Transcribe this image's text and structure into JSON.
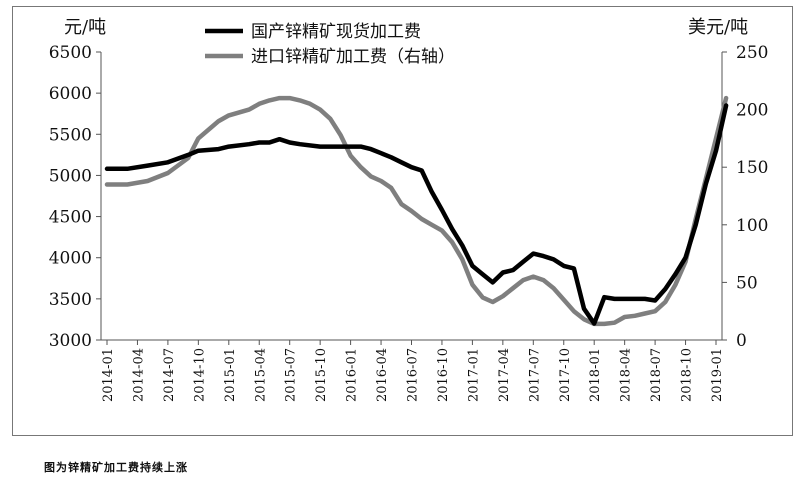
{
  "caption": "图为锌精矿加工费持续上涨",
  "chart_data": {
    "type": "line",
    "left_unit": "元/吨",
    "right_unit": "美元/吨",
    "ylim_left": [
      3000,
      6500
    ],
    "yticks_left": [
      3000,
      3500,
      4000,
      4500,
      5000,
      5500,
      6000,
      6500
    ],
    "ylim_right": [
      0,
      250
    ],
    "yticks_right": [
      0,
      50,
      100,
      150,
      200,
      250
    ],
    "xlim": [
      "2014-01",
      "2019-01"
    ],
    "x_tick_labels": [
      "2014-01",
      "2014-04",
      "2014-07",
      "2014-10",
      "2015-01",
      "2015-04",
      "2015-07",
      "2015-10",
      "2016-01",
      "2016-04",
      "2016-07",
      "2016-10",
      "2017-01",
      "2017-04",
      "2017-07",
      "2017-10",
      "2018-01",
      "2018-04",
      "2018-07",
      "2018-10",
      "2019-01"
    ],
    "legend_position": "top-center",
    "grid": false,
    "series": [
      {
        "name": "国产锌精矿现货加工费",
        "axis": "left",
        "color": "#000000",
        "x": [
          "2014-01",
          "2014-03",
          "2014-05",
          "2014-07",
          "2014-09",
          "2014-10",
          "2014-12",
          "2015-01",
          "2015-03",
          "2015-04",
          "2015-05",
          "2015-06",
          "2015-07",
          "2015-08",
          "2015-10",
          "2015-12",
          "2016-01",
          "2016-02",
          "2016-03",
          "2016-04",
          "2016-05",
          "2016-06",
          "2016-07",
          "2016-08",
          "2016-09",
          "2016-10",
          "2016-11",
          "2016-12",
          "2017-01",
          "2017-02",
          "2017-03",
          "2017-04",
          "2017-05",
          "2017-06",
          "2017-07",
          "2017-08",
          "2017-09",
          "2017-10",
          "2017-11",
          "2017-12",
          "2018-01",
          "2018-02",
          "2018-03",
          "2018-04",
          "2018-05",
          "2018-06",
          "2018-07",
          "2018-08",
          "2018-09",
          "2018-10",
          "2018-11",
          "2018-12",
          "2019-01",
          "2019-02"
        ],
        "values": [
          5080,
          5080,
          5120,
          5160,
          5250,
          5300,
          5320,
          5350,
          5380,
          5400,
          5400,
          5440,
          5400,
          5380,
          5350,
          5350,
          5350,
          5350,
          5320,
          5270,
          5220,
          5160,
          5100,
          5060,
          4800,
          4580,
          4350,
          4150,
          3900,
          3800,
          3700,
          3820,
          3850,
          3950,
          4050,
          4020,
          3980,
          3900,
          3870,
          3380,
          3200,
          3520,
          3500,
          3500,
          3500,
          3500,
          3480,
          3620,
          3800,
          4000,
          4400,
          4900,
          5300,
          5850
        ]
      },
      {
        "name": "进口锌精矿加工费（右轴）",
        "axis": "right",
        "color": "#7f7f7f",
        "x": [
          "2014-01",
          "2014-03",
          "2014-05",
          "2014-07",
          "2014-09",
          "2014-10",
          "2014-12",
          "2015-01",
          "2015-03",
          "2015-04",
          "2015-05",
          "2015-06",
          "2015-07",
          "2015-08",
          "2015-09",
          "2015-10",
          "2015-11",
          "2015-12",
          "2016-01",
          "2016-02",
          "2016-03",
          "2016-04",
          "2016-05",
          "2016-06",
          "2016-07",
          "2016-08",
          "2016-09",
          "2016-10",
          "2016-11",
          "2016-12",
          "2017-01",
          "2017-02",
          "2017-03",
          "2017-04",
          "2017-05",
          "2017-06",
          "2017-07",
          "2017-08",
          "2017-09",
          "2017-10",
          "2017-11",
          "2017-12",
          "2018-01",
          "2018-02",
          "2018-03",
          "2018-04",
          "2018-05",
          "2018-06",
          "2018-07",
          "2018-08",
          "2018-09",
          "2018-10",
          "2018-11",
          "2018-12",
          "2019-01",
          "2019-02"
        ],
        "values": [
          135,
          135,
          138,
          145,
          158,
          175,
          190,
          195,
          200,
          205,
          208,
          210,
          210,
          208,
          205,
          200,
          192,
          178,
          160,
          150,
          142,
          138,
          132,
          118,
          112,
          105,
          100,
          95,
          85,
          70,
          48,
          37,
          33,
          38,
          45,
          52,
          55,
          52,
          45,
          35,
          25,
          18,
          14,
          14,
          15,
          20,
          21,
          23,
          25,
          33,
          48,
          68,
          105,
          140,
          175,
          210
        ]
      }
    ]
  }
}
